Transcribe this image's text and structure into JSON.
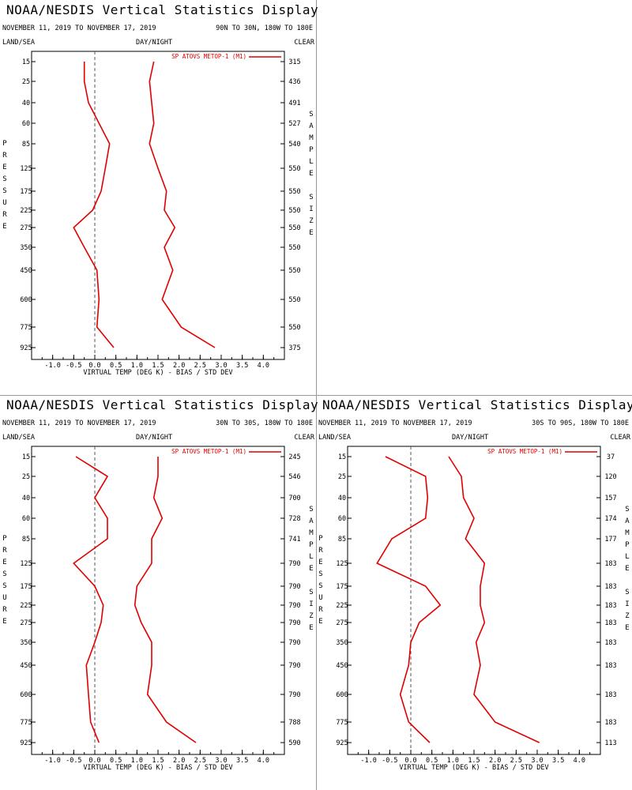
{
  "panels": [
    {
      "title": "NOAA/NESDIS Vertical Statistics Display",
      "date_range": "NOVEMBER 11, 2019 TO NOVEMBER 17, 2019",
      "region": "90N TO 30N, 180W TO 180E",
      "land_sea": "LAND/SEA",
      "day_night": "DAY/NIGHT",
      "clear": "CLEAR"
    },
    {
      "title": "NOAA/NESDIS Vertical Statistics Display",
      "date_range": "NOVEMBER 11, 2019 TO NOVEMBER 17, 2019",
      "region": "30N TO 30S, 180W TO 180E",
      "land_sea": "LAND/SEA",
      "day_night": "DAY/NIGHT",
      "clear": "CLEAR"
    },
    {
      "title": "NOAA/NESDIS Vertical Statistics Display",
      "date_range": "NOVEMBER 11, 2019 TO NOVEMBER 17, 2019",
      "region": "30S TO 90S, 180W TO 180E",
      "land_sea": "LAND/SEA",
      "day_night": "DAY/NIGHT",
      "clear": "CLEAR"
    }
  ],
  "colors": {
    "series": "#e00000",
    "frame": "#000000",
    "zero_line": "#555555",
    "divider": "#999999"
  },
  "chart_data": [
    {
      "type": "line",
      "xlabel": "VIRTUAL TEMP (DEG K) - BIAS / STD DEV",
      "ylabel": "PRESSURE",
      "y2label": "SAMPLE SIZE",
      "legend": "SP ATOVS METOP-1 (M1)",
      "legend_position": "top-right",
      "xlim": [
        -1.5,
        4.5
      ],
      "xticks": [
        "-1.0",
        "-0.5",
        "0.0",
        "0.5",
        "1.0",
        "1.5",
        "2.0",
        "2.5",
        "3.0",
        "3.5",
        "4.0"
      ],
      "pressure_levels": [
        "15",
        "25",
        "40",
        "60",
        "85",
        "125",
        "175",
        "225",
        "275",
        "350",
        "450",
        "600",
        "775",
        "925"
      ],
      "sample_size": [
        "315",
        "436",
        "491",
        "527",
        "540",
        "550",
        "550",
        "550",
        "550",
        "550",
        "550",
        "550",
        "550",
        "375"
      ],
      "bias": [
        -0.25,
        -0.25,
        -0.15,
        0.1,
        0.35,
        0.25,
        0.15,
        -0.05,
        -0.5,
        -0.25,
        0.05,
        0.1,
        0.05,
        0.45
      ],
      "std_dev": [
        1.4,
        1.3,
        1.35,
        1.4,
        1.3,
        1.5,
        1.7,
        1.65,
        1.9,
        1.65,
        1.85,
        1.6,
        2.05,
        2.85
      ]
    },
    {
      "type": "line",
      "xlabel": "VIRTUAL TEMP (DEG K) - BIAS / STD DEV",
      "ylabel": "PRESSURE",
      "y2label": "SAMPLE SIZE",
      "legend": "SP ATOVS METOP-1 (M1)",
      "legend_position": "top-right",
      "xlim": [
        -1.5,
        4.5
      ],
      "xticks": [
        "-1.0",
        "-0.5",
        "0.0",
        "0.5",
        "1.0",
        "1.5",
        "2.0",
        "2.5",
        "3.0",
        "3.5",
        "4.0"
      ],
      "pressure_levels": [
        "15",
        "25",
        "40",
        "60",
        "85",
        "125",
        "175",
        "225",
        "275",
        "350",
        "450",
        "600",
        "775",
        "925"
      ],
      "sample_size": [
        "245",
        "546",
        "700",
        "728",
        "741",
        "790",
        "790",
        "790",
        "790",
        "790",
        "790",
        "790",
        "788",
        "590"
      ],
      "bias": [
        -0.45,
        0.3,
        0.0,
        0.3,
        0.3,
        -0.5,
        0.0,
        0.2,
        0.15,
        0.0,
        -0.2,
        -0.15,
        -0.1,
        0.1
      ],
      "std_dev": [
        1.5,
        1.5,
        1.4,
        1.6,
        1.35,
        1.35,
        1.0,
        0.95,
        1.1,
        1.35,
        1.35,
        1.25,
        1.7,
        2.4
      ]
    },
    {
      "type": "line",
      "xlabel": "VIRTUAL TEMP (DEG K) - BIAS / STD DEV",
      "ylabel": "PRESSURE",
      "y2label": "SAMPLE SIZE",
      "legend": "SP ATOVS METOP-1 (M1)",
      "legend_position": "top-right",
      "xlim": [
        -1.5,
        4.5
      ],
      "xticks": [
        "-1.0",
        "-0.5",
        "0.0",
        "0.5",
        "1.0",
        "1.5",
        "2.0",
        "2.5",
        "3.0",
        "3.5",
        "4.0"
      ],
      "pressure_levels": [
        "15",
        "25",
        "40",
        "60",
        "85",
        "125",
        "175",
        "225",
        "275",
        "350",
        "450",
        "600",
        "775",
        "925"
      ],
      "sample_size": [
        "37",
        "120",
        "157",
        "174",
        "177",
        "183",
        "183",
        "183",
        "183",
        "183",
        "183",
        "183",
        "183",
        "113"
      ],
      "bias": [
        -0.6,
        0.35,
        0.4,
        0.35,
        -0.45,
        -0.8,
        0.35,
        0.7,
        0.2,
        0.0,
        -0.05,
        -0.25,
        -0.05,
        0.45
      ],
      "std_dev": [
        0.9,
        1.2,
        1.25,
        1.5,
        1.3,
        1.75,
        1.65,
        1.65,
        1.75,
        1.55,
        1.65,
        1.5,
        2.0,
        3.05
      ]
    }
  ]
}
